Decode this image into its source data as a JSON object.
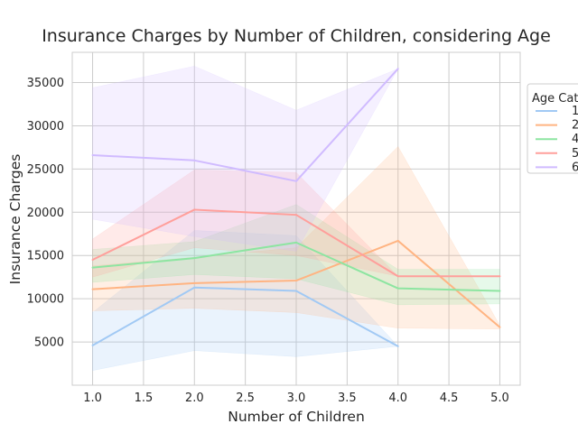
{
  "chart_data": {
    "type": "line",
    "title": "Insurance Charges by Number of Children, considering Age",
    "xlabel": "Number of Children",
    "ylabel": "Insurance Charges",
    "xlim": [
      0.8,
      5.2
    ],
    "ylim": [
      0,
      38500
    ],
    "x_ticks": [
      1.0,
      1.5,
      2.0,
      2.5,
      3.0,
      3.5,
      4.0,
      4.5,
      5.0
    ],
    "x_tick_labels": [
      "1.0",
      "1.5",
      "2.0",
      "2.5",
      "3.0",
      "3.5",
      "4.0",
      "4.5",
      "5.0"
    ],
    "y_ticks": [
      5000,
      10000,
      15000,
      20000,
      25000,
      30000,
      35000
    ],
    "y_tick_labels": [
      "5000",
      "10000",
      "15000",
      "20000",
      "25000",
      "30000",
      "35000"
    ],
    "grid": true,
    "legend": {
      "title": "Age Cate",
      "position": "top-right",
      "entries": [
        "1",
        "2",
        "4",
        "5",
        "6"
      ]
    },
    "series": [
      {
        "name": "1",
        "color": "#a1c9f4",
        "x": [
          1,
          2,
          3,
          4
        ],
        "y": [
          4600,
          11300,
          10900,
          4500
        ],
        "ci_low": [
          1700,
          4000,
          3300,
          4500
        ],
        "ci_high": [
          8400,
          17900,
          17300,
          4500
        ]
      },
      {
        "name": "2",
        "color": "#ffb482",
        "x": [
          1,
          2,
          3,
          4,
          5
        ],
        "y": [
          11100,
          11800,
          12100,
          16700,
          6700
        ],
        "ci_low": [
          8600,
          8900,
          8400,
          6600,
          6500
        ],
        "ci_high": [
          13800,
          14800,
          15900,
          27600,
          6900
        ]
      },
      {
        "name": "4",
        "color": "#8de5a1",
        "x": [
          1,
          2,
          3,
          4,
          5
        ],
        "y": [
          13600,
          14700,
          16500,
          11200,
          10900
        ],
        "ci_low": [
          11900,
          12800,
          12300,
          9300,
          9400
        ],
        "ci_high": [
          15700,
          16600,
          20900,
          13400,
          13400
        ]
      },
      {
        "name": "5",
        "color": "#ff9f9b",
        "x": [
          1,
          2,
          3,
          4,
          5
        ],
        "y": [
          14500,
          20300,
          19700,
          12600,
          12600
        ],
        "ci_low": [
          12500,
          15900,
          15000,
          12600,
          12600
        ],
        "ci_high": [
          16900,
          24900,
          24600,
          12600,
          12600
        ]
      },
      {
        "name": "6",
        "color": "#d0bbff",
        "x": [
          1,
          2,
          3,
          4
        ],
        "y": [
          26600,
          26000,
          23600,
          36600
        ],
        "ci_low": [
          19200,
          17200,
          15500,
          36600
        ],
        "ci_high": [
          34400,
          36900,
          31800,
          36600
        ]
      }
    ]
  }
}
